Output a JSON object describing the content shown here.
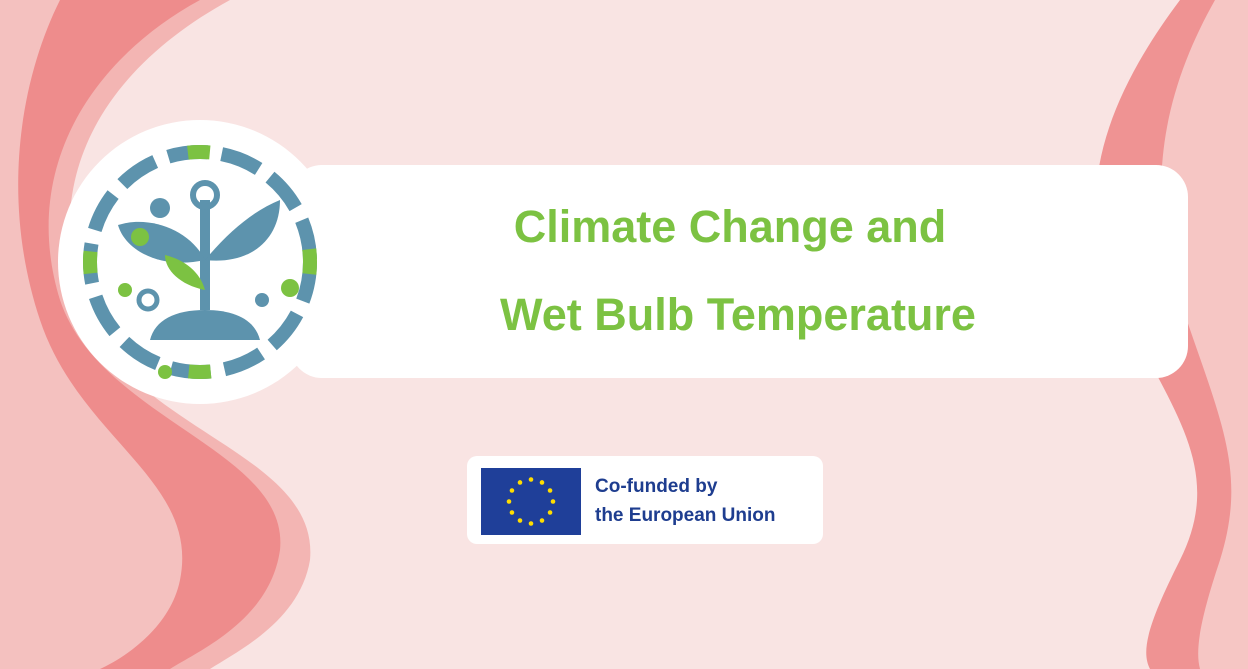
{
  "banner": {
    "title_lines": [
      "Climate Change and",
      "Wet Bulb Temperature"
    ],
    "funding": {
      "lines": [
        "Co-funded by",
        "the European Union"
      ]
    }
  }
}
